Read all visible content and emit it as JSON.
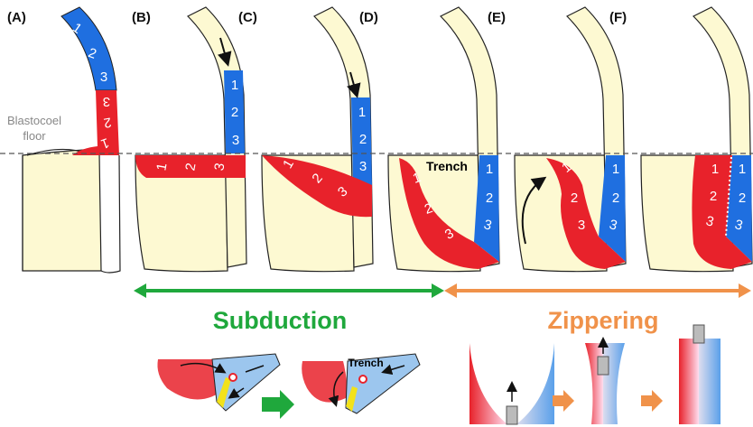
{
  "panels": [
    {
      "label": "(A)",
      "blue": [
        "1",
        "2",
        "3"
      ],
      "red": [
        "3",
        "2",
        "1"
      ]
    },
    {
      "label": "(B)",
      "blue": [
        "1",
        "2",
        "3"
      ],
      "red": [
        "1",
        "2",
        "3"
      ]
    },
    {
      "label": "(C)",
      "blue": [
        "1",
        "2",
        "3"
      ],
      "red": [
        "1",
        "2",
        "3"
      ]
    },
    {
      "label": "(D)",
      "blue": [
        "1",
        "2",
        "3"
      ],
      "red": [
        "1",
        "2",
        "3"
      ]
    },
    {
      "label": "(E)",
      "blue": [
        "1",
        "2",
        "3"
      ],
      "red": [
        "1",
        "2",
        "3"
      ]
    },
    {
      "label": "(F)",
      "blue": [
        "1",
        "2",
        "3"
      ],
      "red": [
        "1",
        "2",
        "3"
      ]
    }
  ],
  "blastocoel_floor": [
    "Blastocoel",
    "floor"
  ],
  "trench": "Trench",
  "phases": [
    "Subduction",
    "Zippering"
  ],
  "subduction_diagram": {
    "trench": "Trench"
  }
}
